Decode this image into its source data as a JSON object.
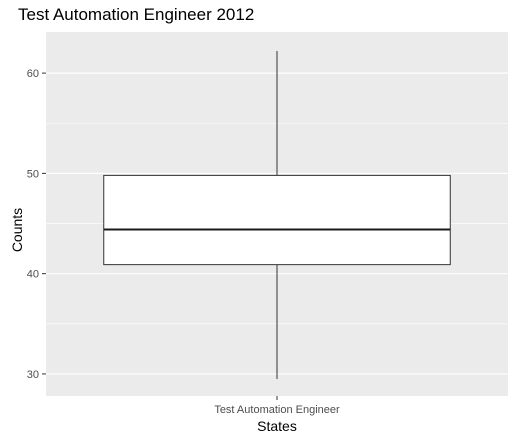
{
  "chart_data": {
    "type": "box",
    "title": "Test Automation Engineer 2012",
    "xlabel": "States",
    "ylabel": "Counts",
    "categories": [
      "Test Automation Engineer"
    ],
    "boxes": [
      {
        "category": "Test Automation Engineer",
        "min": 29.5,
        "q1": 40.9,
        "median": 44.4,
        "q3": 49.8,
        "max": 62.2
      }
    ],
    "ylim": [
      27.8,
      64.1
    ],
    "yticks": [
      30,
      40,
      50,
      60
    ],
    "grid": true,
    "colors": {
      "panel": "#ebebeb",
      "grid": "#ffffff",
      "box_fill": "#ffffff",
      "box_stroke": "#333333",
      "median": "#1a1a1a"
    }
  }
}
